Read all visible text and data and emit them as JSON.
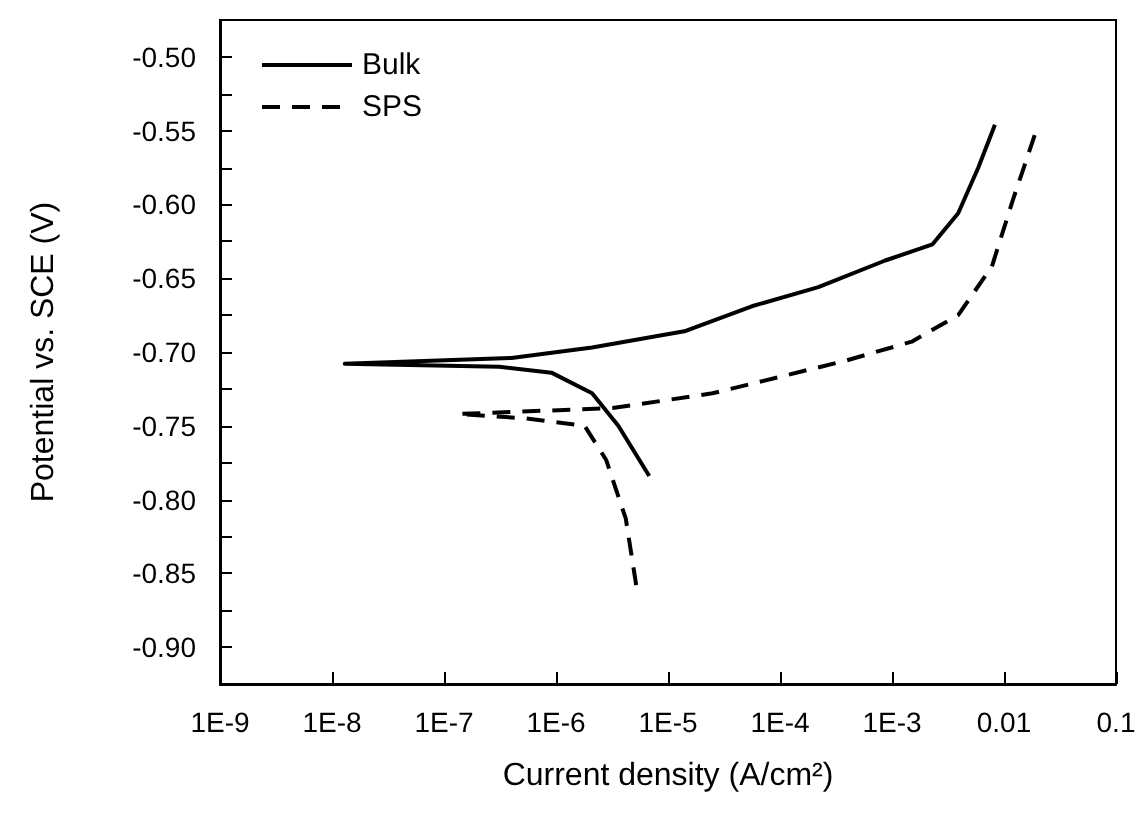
{
  "chart_data": {
    "type": "line",
    "xlabel": "Current density (A/cm²)",
    "ylabel": "Potential vs. SCE (V)",
    "log": "x",
    "xlim": [
      1e-09,
      0.1
    ],
    "xticks": [
      {
        "value": 1e-09,
        "label": "1E-9"
      },
      {
        "value": 1e-08,
        "label": "1E-8"
      },
      {
        "value": 1e-07,
        "label": "1E-7"
      },
      {
        "value": 1e-06,
        "label": "1E-6"
      },
      {
        "value": 1e-05,
        "label": "1E-5"
      },
      {
        "value": 0.0001,
        "label": "1E-4"
      },
      {
        "value": 0.001,
        "label": "1E-3"
      },
      {
        "value": 0.01,
        "label": "0.01"
      },
      {
        "value": 0.1,
        "label": "0.1"
      }
    ],
    "ylim": [
      -0.925,
      -0.475
    ],
    "yticks": [
      {
        "value": -0.9,
        "label": "-0.90"
      },
      {
        "value": -0.875,
        "label": null
      },
      {
        "value": -0.85,
        "label": "-0.85"
      },
      {
        "value": -0.825,
        "label": null
      },
      {
        "value": -0.8,
        "label": "-0.80"
      },
      {
        "value": -0.775,
        "label": null
      },
      {
        "value": -0.75,
        "label": "-0.75"
      },
      {
        "value": -0.725,
        "label": null
      },
      {
        "value": -0.7,
        "label": "-0.70"
      },
      {
        "value": -0.675,
        "label": null
      },
      {
        "value": -0.65,
        "label": "-0.65"
      },
      {
        "value": -0.625,
        "label": null
      },
      {
        "value": -0.6,
        "label": "-0.60"
      },
      {
        "value": -0.575,
        "label": null
      },
      {
        "value": -0.55,
        "label": "-0.55"
      },
      {
        "value": -0.525,
        "label": null
      },
      {
        "value": -0.5,
        "label": "-0.50"
      }
    ],
    "grid": false,
    "legend": "top left",
    "marker": "none",
    "series": [
      {
        "name": "Bulk",
        "color": "#000000",
        "line_style": "solid",
        "x": [
          6.8e-06,
          3.6e-06,
          2.1e-06,
          9.1e-07,
          3.1e-07,
          1.3e-08,
          4e-07,
          2.1e-06,
          1.4e-05,
          5.6e-05,
          0.00022,
          0.00087,
          0.0023,
          0.0039,
          0.0059,
          0.0083
        ],
        "values": [
          -0.784,
          -0.75,
          -0.728,
          -0.714,
          -0.71,
          -0.708,
          -0.704,
          -0.697,
          -0.686,
          -0.669,
          -0.656,
          -0.638,
          -0.627,
          -0.606,
          -0.575,
          -0.546
        ]
      },
      {
        "name": "SPS",
        "color": "#000000",
        "line_style": "dashed",
        "x": [
          5.2e-06,
          4.2e-06,
          2.8e-06,
          1.8e-06,
          5.4e-07,
          1.35e-07,
          3.2e-06,
          2.5e-05,
          0.00038,
          0.0015,
          0.0039,
          0.0078,
          0.012,
          0.019
        ],
        "values": [
          -0.858,
          -0.813,
          -0.773,
          -0.75,
          -0.745,
          -0.742,
          -0.738,
          -0.728,
          -0.706,
          -0.693,
          -0.675,
          -0.642,
          -0.597,
          -0.552
        ]
      }
    ]
  }
}
